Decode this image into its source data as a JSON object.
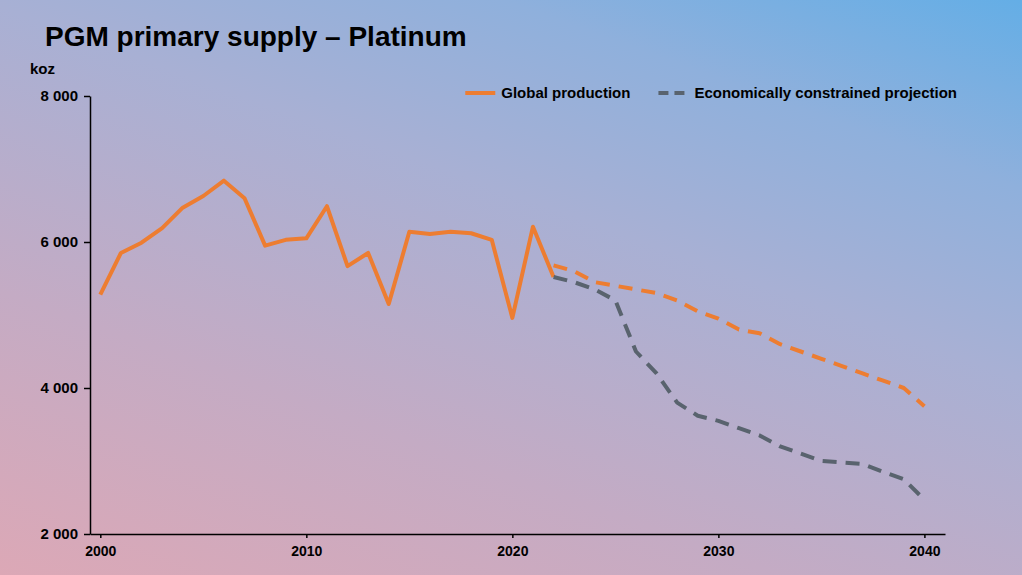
{
  "chart_data": {
    "type": "line",
    "title": "PGM primary supply – Platinum",
    "y_label": "koz",
    "x": [
      2000,
      2001,
      2002,
      2003,
      2004,
      2005,
      2006,
      2007,
      2008,
      2009,
      2010,
      2011,
      2012,
      2013,
      2014,
      2015,
      2016,
      2017,
      2018,
      2019,
      2020,
      2021,
      2022,
      2023,
      2024,
      2025,
      2026,
      2027,
      2028,
      2029,
      2030,
      2031,
      2032,
      2033,
      2034,
      2035,
      2036,
      2037,
      2038,
      2039,
      2040
    ],
    "series": [
      {
        "name": "Global production",
        "color": "#ed7d31",
        "line_style": "solid",
        "values": [
          5280,
          5850,
          5990,
          6190,
          6470,
          6630,
          6840,
          6600,
          5950,
          6030,
          6050,
          6490,
          5670,
          5850,
          5150,
          6140,
          6110,
          6140,
          6120,
          6030,
          4960,
          6210,
          5520,
          null,
          null,
          null,
          null,
          null,
          null,
          null,
          null,
          null,
          null,
          null,
          null,
          null,
          null,
          null,
          null,
          null,
          null
        ]
      },
      {
        "color": "#ed7d31",
        "line_style": "dashed",
        "values": [
          null,
          null,
          null,
          null,
          null,
          null,
          null,
          null,
          null,
          null,
          null,
          null,
          null,
          null,
          null,
          null,
          null,
          null,
          null,
          null,
          null,
          null,
          5680,
          5600,
          5450,
          5400,
          5350,
          5300,
          5200,
          5050,
          4950,
          4800,
          4750,
          4600,
          4500,
          4400,
          4300,
          4200,
          4100,
          4000,
          3750
        ]
      },
      {
        "name": "Economically constrained projection",
        "color": "#59636e",
        "line_style": "dashed",
        "values": [
          null,
          null,
          null,
          null,
          null,
          null,
          null,
          null,
          null,
          null,
          null,
          null,
          null,
          null,
          null,
          null,
          null,
          null,
          null,
          null,
          null,
          null,
          5520,
          5450,
          5350,
          5200,
          4500,
          4200,
          3800,
          3620,
          3550,
          3450,
          3350,
          3200,
          3100,
          3000,
          2980,
          2960,
          2850,
          2750,
          2470
        ]
      }
    ],
    "xlim": [
      1999.5,
      2041
    ],
    "xticks": [
      2000,
      2010,
      2020,
      2030,
      2040
    ],
    "ylim": [
      2000,
      8000
    ],
    "yticks": [
      {
        "value": 2000,
        "label": "2 000"
      },
      {
        "value": 4000,
        "label": "4 000"
      },
      {
        "value": 6000,
        "label": "6 000"
      },
      {
        "value": 8000,
        "label": "8 000"
      }
    ],
    "grid": false,
    "legend": "top-right"
  }
}
